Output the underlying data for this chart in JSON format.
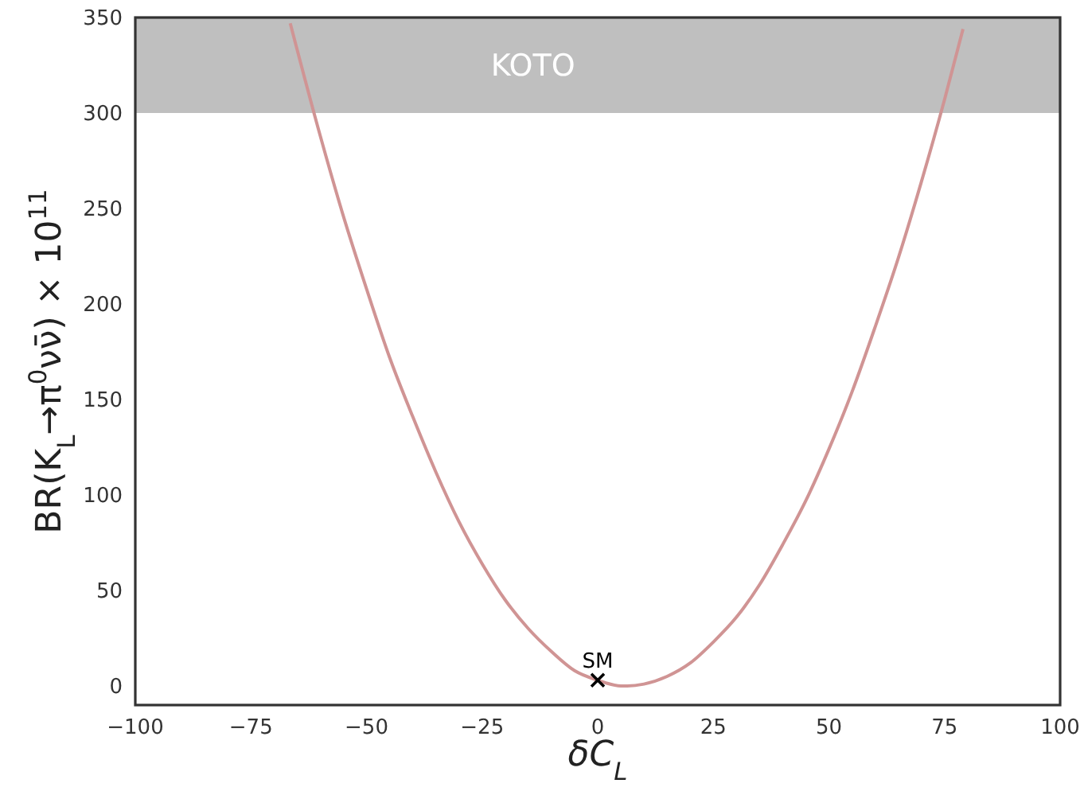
{
  "chart_data": {
    "type": "line",
    "xlabel": "δC$_{L}$",
    "ylabel": "BR(K$_{L}$→π$^{0}$νν̄) × 10$^{11}$",
    "xlim": [
      -100,
      100
    ],
    "ylim": [
      -10,
      350
    ],
    "xticks": [
      {
        "value": -100,
        "label": "−100"
      },
      {
        "value": -75,
        "label": "−75"
      },
      {
        "value": -50,
        "label": "−50"
      },
      {
        "value": -25,
        "label": "−25"
      },
      0,
      25,
      50,
      75,
      100
    ],
    "yticks": [
      0,
      50,
      100,
      150,
      200,
      250,
      300,
      350
    ],
    "grid": false,
    "bands": [
      {
        "axis": "y",
        "from": 300,
        "to": 350,
        "label": "KOTO",
        "color": "#bfbfbf"
      }
    ],
    "series": [
      {
        "color": "#d09494",
        "marker": "none",
        "x": [
          -66.5,
          -60,
          -55,
          -50,
          -45,
          -40,
          -35,
          -30,
          -25,
          -20,
          -15,
          -10,
          -5,
          0,
          5,
          6.4,
          10,
          15,
          20,
          25,
          30,
          35,
          40,
          45,
          50,
          55,
          60,
          65,
          70,
          75,
          79
        ],
        "values": [
          347,
          288,
          246,
          208,
          172,
          141,
          112,
          86,
          64,
          45,
          30,
          18,
          8,
          3,
          0,
          0,
          1,
          5,
          12,
          23,
          36,
          53,
          74,
          97,
          124,
          154,
          188,
          224,
          264,
          307,
          344
        ]
      },
      {
        "type": "scatter",
        "color": "#000000",
        "marker": "cross",
        "x": [
          0
        ],
        "values": [
          3
        ]
      }
    ],
    "annotations": [
      {
        "text": "SM",
        "x": 0,
        "y": 3
      }
    ]
  }
}
